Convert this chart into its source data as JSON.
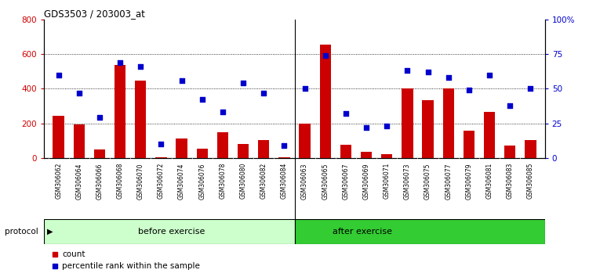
{
  "title": "GDS3503 / 203003_at",
  "categories": [
    "GSM306062",
    "GSM306064",
    "GSM306066",
    "GSM306068",
    "GSM306070",
    "GSM306072",
    "GSM306074",
    "GSM306076",
    "GSM306078",
    "GSM306080",
    "GSM306082",
    "GSM306084",
    "GSM306063",
    "GSM306065",
    "GSM306067",
    "GSM306069",
    "GSM306071",
    "GSM306073",
    "GSM306075",
    "GSM306077",
    "GSM306079",
    "GSM306081",
    "GSM306083",
    "GSM306085"
  ],
  "counts": [
    245,
    195,
    50,
    535,
    445,
    5,
    110,
    55,
    150,
    80,
    105,
    5,
    200,
    655,
    75,
    35,
    20,
    400,
    335,
    400,
    155,
    265,
    70,
    105
  ],
  "percentile_ranks": [
    60,
    47,
    29,
    69,
    66,
    10,
    56,
    42,
    33,
    54,
    47,
    9,
    50,
    74,
    32,
    22,
    23,
    63,
    62,
    58,
    49,
    60,
    38,
    50
  ],
  "before_exercise_count": 12,
  "after_exercise_count": 12,
  "before_label": "before exercise",
  "after_label": "after exercise",
  "protocol_label": "protocol",
  "legend_count": "count",
  "legend_pct": "percentile rank within the sample",
  "bar_color": "#cc0000",
  "dot_color": "#0000cc",
  "before_bg": "#ccffcc",
  "after_bg": "#33cc33",
  "tick_bg": "#d0d0d0",
  "ylim_left": [
    0,
    800
  ],
  "ylim_right": [
    0,
    100
  ],
  "yticks_left": [
    0,
    200,
    400,
    600,
    800
  ],
  "yticks_right": [
    0,
    25,
    50,
    75,
    100
  ],
  "yticklabels_right": [
    "0",
    "25",
    "50",
    "75",
    "100%"
  ]
}
